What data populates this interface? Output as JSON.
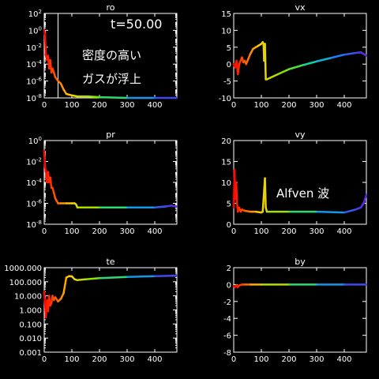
{
  "chart_data": [
    {
      "type": "line",
      "title": "ro",
      "log_scale_y": true,
      "xlim": [
        0,
        480
      ],
      "ylim": [
        1e-08,
        100
      ],
      "x_ticks": [
        "0",
        "100",
        "200",
        "300",
        "400"
      ],
      "y_ticks": [
        "10^-8",
        "10^-6",
        "10^-4",
        "10^-2",
        "10^0",
        "10^2"
      ],
      "series": [
        {
          "color_map": "rainbow",
          "x": [
            0,
            3,
            6,
            10,
            14,
            18,
            22,
            26,
            30,
            35,
            40,
            50,
            60,
            70,
            80,
            100,
            120,
            160,
            200,
            300,
            400,
            480
          ],
          "y": [
            1,
            0.3,
            0.001,
            0.0003,
            0.001,
            3e-05,
            0.0003,
            1e-05,
            3e-05,
            1e-05,
            3e-06,
            1e-06,
            5e-07,
            1e-07,
            3e-08,
            2e-08,
            1.5e-08,
            1.5e-08,
            1.2e-08,
            1e-08,
            1e-08,
            1e-08
          ]
        }
      ],
      "vline_x": 50,
      "annotations": [
        "t=50.00",
        "密度の高い",
        "ガスが浮上"
      ]
    },
    {
      "type": "line",
      "title": "vx",
      "xlim": [
        0,
        480
      ],
      "ylim": [
        -10,
        15
      ],
      "x_ticks": [
        "0",
        "100",
        "200",
        "300",
        "400"
      ],
      "y_ticks": [
        "-10",
        "-5",
        "0",
        "5",
        "10",
        "15"
      ],
      "series": [
        {
          "color_map": "rainbow",
          "x": [
            0,
            5,
            10,
            15,
            20,
            25,
            30,
            35,
            40,
            45,
            50,
            60,
            70,
            80,
            90,
            100,
            105,
            108,
            110,
            113,
            116,
            120,
            160,
            200,
            250,
            300,
            350,
            400,
            440,
            460,
            470,
            480
          ],
          "y": [
            0,
            -1,
            1,
            -3,
            0,
            1,
            2,
            0.5,
            1,
            0,
            1,
            3,
            4.5,
            5,
            5.5,
            6,
            6.5,
            6,
            1,
            6,
            -4.5,
            -4.5,
            -3,
            -1.5,
            -0.3,
            0.8,
            1.8,
            2.8,
            3.3,
            3.5,
            3,
            2.5
          ]
        }
      ]
    },
    {
      "type": "line",
      "title": "pr",
      "log_scale_y": true,
      "xlim": [
        0,
        480
      ],
      "ylim": [
        1e-08,
        1
      ],
      "x_ticks": [
        "0",
        "100",
        "200",
        "300",
        "400"
      ],
      "y_ticks": [
        "10^-8",
        "10^-6",
        "10^-4",
        "10^-2",
        "10^0"
      ],
      "series": [
        {
          "color_map": "rainbow",
          "x": [
            0,
            3,
            6,
            10,
            14,
            18,
            22,
            26,
            30,
            35,
            40,
            50,
            60,
            80,
            100,
            110,
            115,
            120,
            200,
            300,
            400,
            440,
            460,
            480
          ],
          "y": [
            0.1,
            0.003,
            0.001,
            0.0001,
            0.001,
            0.0001,
            0.0003,
            3e-05,
            3e-05,
            1e-05,
            3e-06,
            1e-06,
            1e-06,
            1e-06,
            1e-06,
            1e-06,
            8e-07,
            4e-07,
            4e-07,
            4e-07,
            4e-07,
            5e-07,
            6e-07,
            5e-07
          ]
        }
      ]
    },
    {
      "type": "line",
      "title": "vy",
      "xlim": [
        0,
        480
      ],
      "ylim": [
        0,
        20
      ],
      "x_ticks": [
        "0",
        "100",
        "200",
        "300",
        "400"
      ],
      "y_ticks": [
        "0",
        "5",
        "10",
        "15",
        "20"
      ],
      "series": [
        {
          "color_map": "rainbow",
          "x": [
            0,
            3,
            6,
            9,
            12,
            15,
            20,
            25,
            30,
            40,
            60,
            80,
            100,
            105,
            110,
            113,
            116,
            120,
            200,
            300,
            400,
            440,
            460,
            470,
            480
          ],
          "y": [
            4,
            13,
            6,
            10,
            5,
            3,
            4,
            3,
            3.5,
            3.2,
            3,
            3,
            2.8,
            3,
            8,
            11,
            4,
            3,
            3,
            3,
            2.8,
            3.5,
            4,
            5,
            7
          ]
        }
      ],
      "annotations": [
        "Alfven 波"
      ]
    },
    {
      "type": "line",
      "title": "te",
      "log_scale_y": true,
      "xlim": [
        0,
        480
      ],
      "ylim": [
        0.001,
        1000
      ],
      "x_ticks": [
        "0",
        "100",
        "200",
        "300",
        "400"
      ],
      "y_ticks": [
        "0.001",
        "0.010",
        "0.100",
        "1.000",
        "10.000",
        "100.000",
        "1000.000"
      ],
      "series": [
        {
          "color_map": "rainbow",
          "x": [
            0,
            3,
            6,
            10,
            14,
            18,
            22,
            26,
            30,
            35,
            40,
            50,
            60,
            70,
            80,
            90,
            100,
            110,
            120,
            150,
            200,
            300,
            400,
            480
          ],
          "y": [
            20,
            3,
            0.3,
            5,
            0.8,
            10,
            2,
            3,
            10,
            5,
            8,
            4,
            6,
            15,
            200,
            250,
            240,
            150,
            130,
            150,
            180,
            220,
            250,
            270
          ]
        }
      ]
    },
    {
      "type": "line",
      "title": "by",
      "xlim": [
        0,
        480
      ],
      "ylim": [
        -8,
        2
      ],
      "x_ticks": [
        "0",
        "100",
        "200",
        "300",
        "400"
      ],
      "y_ticks": [
        "-8",
        "-6",
        "-4",
        "-2",
        "0",
        "2"
      ],
      "series": [
        {
          "color_map": "rainbow",
          "x": [
            0,
            5,
            10,
            15,
            20,
            30,
            40,
            60,
            100,
            200,
            300,
            400,
            480
          ],
          "y": [
            -0.2,
            -0.3,
            -0.1,
            -0.3,
            -0.1,
            0,
            0,
            0,
            0,
            0,
            0,
            0,
            0
          ]
        }
      ]
    }
  ]
}
